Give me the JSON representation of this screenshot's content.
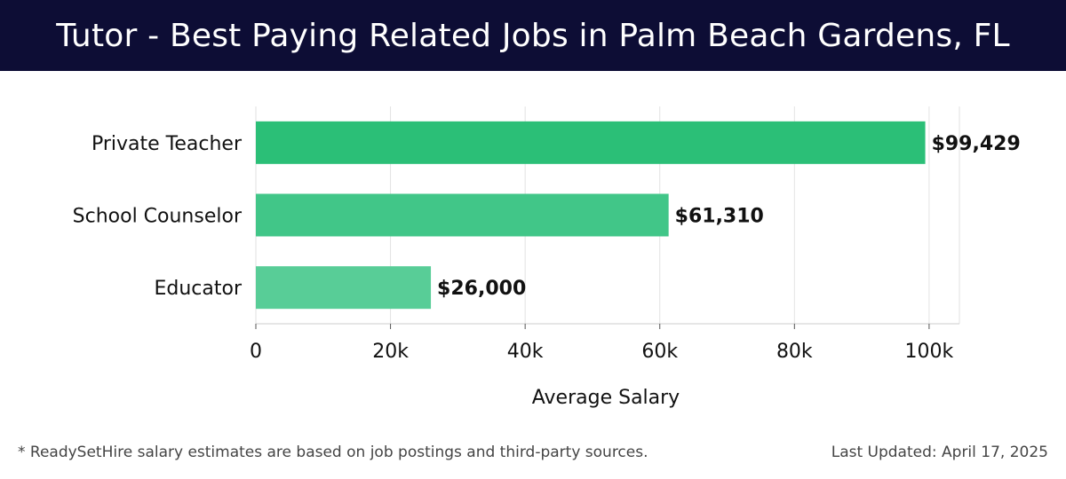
{
  "header": {
    "title": "Tutor - Best Paying Related Jobs in Palm Beach Gardens, FL"
  },
  "chart_data": {
    "type": "bar",
    "orientation": "horizontal",
    "categories": [
      "Private Teacher",
      "School Counselor",
      "Educator"
    ],
    "values": [
      99429,
      61310,
      26000
    ],
    "value_labels": [
      "$99,429",
      "$61,310",
      "$26,000"
    ],
    "bar_colors": [
      "#2bbf77",
      "#41c688",
      "#58cd97"
    ],
    "xlabel": "Average Salary",
    "ylabel": "",
    "xlim": [
      0,
      104500
    ],
    "xticks": [
      0,
      20000,
      40000,
      60000,
      80000,
      100000
    ],
    "xtick_labels": [
      "0",
      "20k",
      "40k",
      "60k",
      "80k",
      "100k"
    ],
    "grid": "vertical"
  },
  "footer": {
    "note": "* ReadySetHire salary estimates are based on job postings and third-party sources.",
    "updated": "Last Updated: April 17, 2025"
  }
}
